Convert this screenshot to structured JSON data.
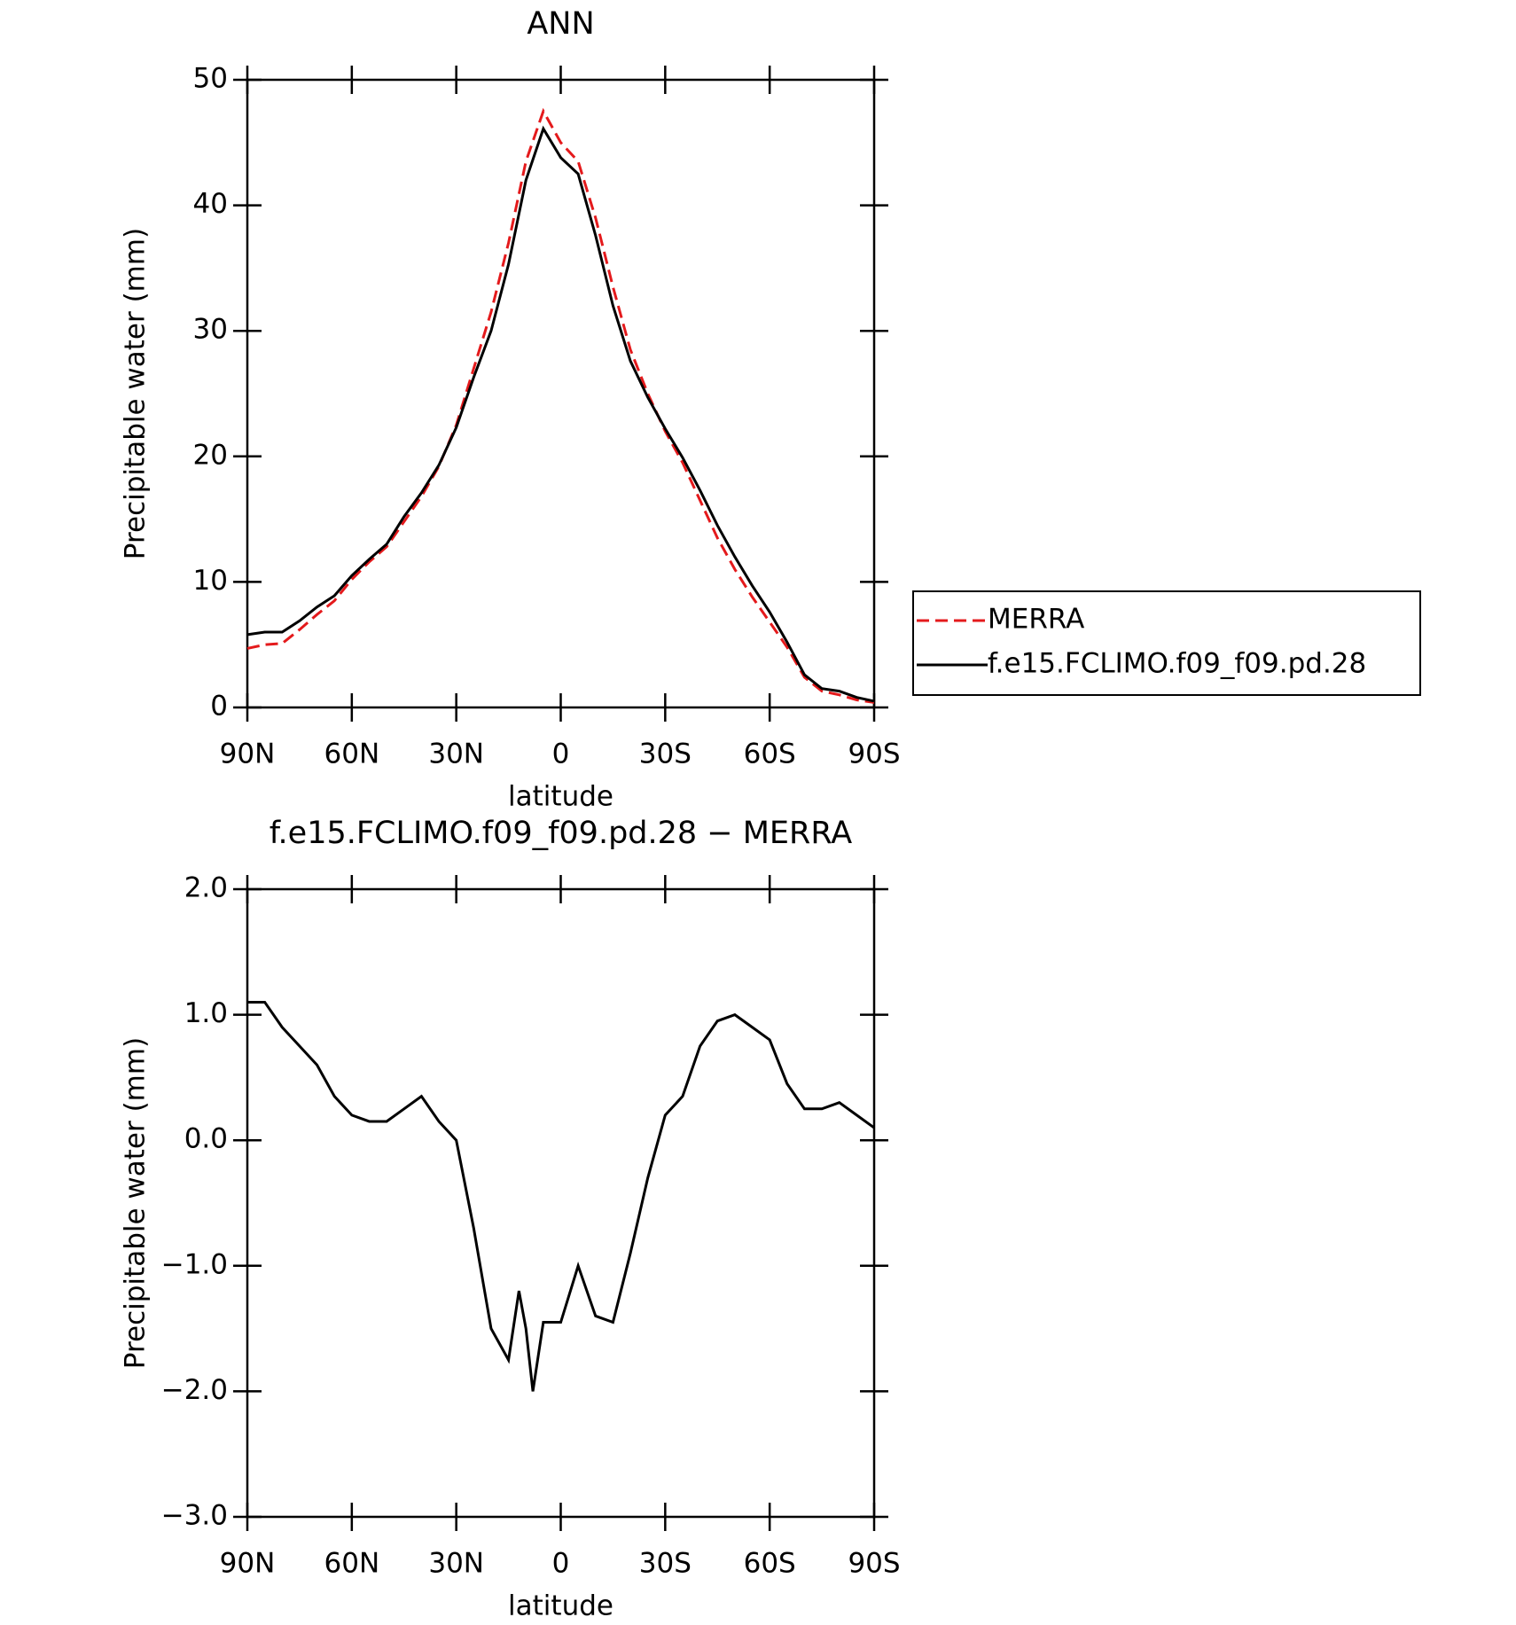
{
  "chart_data": [
    {
      "type": "line",
      "title": "ANN",
      "x_label": "latitude",
      "y_label": "Precipitable water (mm)",
      "x": [
        90,
        85,
        80,
        75,
        70,
        65,
        60,
        55,
        50,
        45,
        40,
        35,
        30,
        25,
        20,
        15,
        10,
        5,
        0,
        -5,
        -10,
        -15,
        -20,
        -25,
        -30,
        -35,
        -40,
        -45,
        -50,
        -55,
        -60,
        -65,
        -70,
        -75,
        -80,
        -85,
        -90
      ],
      "series": [
        {
          "name": "MERRA",
          "color": "#e41a1c",
          "line_style": "dashed",
          "values": [
            4.7,
            5.0,
            5.1,
            6.2,
            7.4,
            8.5,
            10.2,
            11.6,
            12.8,
            14.8,
            16.8,
            19.2,
            22.5,
            27.0,
            31.5,
            37.0,
            43.5,
            47.5,
            45.0,
            43.5,
            39.0,
            33.5,
            28.5,
            25.0,
            22.0,
            19.5,
            16.5,
            13.5,
            11.0,
            8.8,
            6.8,
            4.8,
            2.4,
            1.3,
            1.0,
            0.6,
            0.4
          ]
        },
        {
          "name": "f.e15.FCLIMO.f09_f09.pd.28",
          "color": "#000000",
          "line_style": "solid",
          "values": [
            5.8,
            6.0,
            6.0,
            6.9,
            8.0,
            8.9,
            10.5,
            11.8,
            13.0,
            15.2,
            17.1,
            19.3,
            22.3,
            26.3,
            30.0,
            35.3,
            42.0,
            46.1,
            43.8,
            42.5,
            37.6,
            32.0,
            27.6,
            24.7,
            22.2,
            19.9,
            17.3,
            14.5,
            12.0,
            9.7,
            7.6,
            5.2,
            2.6,
            1.5,
            1.3,
            0.8,
            0.5
          ]
        }
      ],
      "xlim": [
        90,
        -90
      ],
      "xticks": [
        {
          "value": 90,
          "label": "90N"
        },
        {
          "value": 60,
          "label": "60N"
        },
        {
          "value": 30,
          "label": "30N"
        },
        0,
        {
          "value": -30,
          "label": "30S"
        },
        {
          "value": -60,
          "label": "60S"
        },
        {
          "value": -90,
          "label": "90S"
        }
      ],
      "ylim": [
        0,
        50
      ],
      "yticks": [
        0,
        10,
        20,
        30,
        40,
        50
      ],
      "legend": "right"
    },
    {
      "type": "line",
      "title": "f.e15.FCLIMO.f09_f09.pd.28 − MERRA",
      "x_label": "latitude",
      "y_label": "Precipitable water (mm)",
      "x": [
        90,
        85,
        80,
        75,
        70,
        65,
        60,
        55,
        50,
        45,
        40,
        35,
        30,
        25,
        20,
        15,
        12,
        10,
        8,
        5,
        0,
        -5,
        -10,
        -15,
        -20,
        -25,
        -30,
        -35,
        -40,
        -45,
        -50,
        -55,
        -60,
        -65,
        -70,
        -75,
        -80,
        -85,
        -90
      ],
      "values": [
        1.1,
        1.1,
        0.9,
        0.75,
        0.6,
        0.35,
        0.2,
        0.15,
        0.15,
        0.25,
        0.35,
        0.15,
        0.0,
        -0.7,
        -1.5,
        -1.75,
        -1.2,
        -1.5,
        -2.0,
        -1.45,
        -1.45,
        -1.0,
        -1.4,
        -1.45,
        -0.9,
        -0.3,
        0.2,
        0.35,
        0.75,
        0.95,
        1.0,
        0.9,
        0.8,
        0.45,
        0.25,
        0.25,
        0.3,
        0.2,
        0.1
      ],
      "color": "#000000",
      "xlim": [
        90,
        -90
      ],
      "xticks": [
        {
          "value": 90,
          "label": "90N"
        },
        {
          "value": 60,
          "label": "60N"
        },
        {
          "value": 30,
          "label": "30N"
        },
        0,
        {
          "value": -30,
          "label": "30S"
        },
        {
          "value": -60,
          "label": "60S"
        },
        {
          "value": -90,
          "label": "90S"
        }
      ],
      "ylim": [
        -3,
        2
      ],
      "yticks": [
        {
          "value": -3,
          "label": "−3.0"
        },
        {
          "value": -2,
          "label": "−2.0"
        },
        {
          "value": -1,
          "label": "−1.0"
        },
        {
          "value": 0,
          "label": "0.0"
        },
        {
          "value": 1,
          "label": "1.0"
        },
        {
          "value": 2,
          "label": "2.0"
        }
      ]
    }
  ]
}
